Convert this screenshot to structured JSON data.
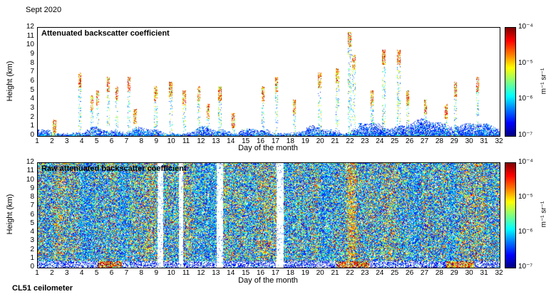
{
  "header": {
    "month_label": "Sept 2020"
  },
  "footer": {
    "instrument_label": "CL51 ceilometer"
  },
  "colors": {
    "background": "#ffffff",
    "axis": "#000000",
    "colormap": "jet",
    "jet_low": "#00007f",
    "jet_high": "#7f0000"
  },
  "chart_data": [
    {
      "type": "heatmap",
      "title": "Attenuated backscatter coefficient",
      "xlabel": "Day of the month",
      "ylabel": "Height (km)",
      "xlim": [
        1,
        32
      ],
      "ylim": [
        0,
        12
      ],
      "x_ticks": [
        1,
        2,
        3,
        4,
        5,
        6,
        7,
        8,
        9,
        10,
        11,
        12,
        13,
        14,
        15,
        16,
        17,
        18,
        19,
        20,
        21,
        22,
        23,
        24,
        25,
        26,
        27,
        28,
        29,
        30,
        31,
        32
      ],
      "y_ticks": [
        0,
        1,
        2,
        3,
        4,
        5,
        6,
        7,
        8,
        9,
        10,
        11,
        12
      ],
      "grid": false,
      "background": "white",
      "colorbar": {
        "label": "m⁻¹ sr⁻¹",
        "tick_labels": [
          "10⁻⁴",
          "10⁻⁵",
          "10⁻⁶",
          "10⁻⁷"
        ],
        "min": 1e-07,
        "max": 0.0001,
        "position": "right"
      },
      "features": {
        "description": "Mostly clear sky; speckled blue aerosol/boundary layer below ~1-2 km all month (deeper after day 23); intermittent cloud and precipitation streaks reaching 2-11.5 km",
        "boundary_layer_km": [
          0.3,
          2.5
        ],
        "events": [
          {
            "day": 2.1,
            "top": 1.8
          },
          {
            "day": 3.8,
            "top": 7.0
          },
          {
            "day": 4.6,
            "top": 4.5
          },
          {
            "day": 5.0,
            "top": 5.0
          },
          {
            "day": 5.7,
            "top": 6.5
          },
          {
            "day": 6.3,
            "top": 5.5
          },
          {
            "day": 7.1,
            "top": 6.5
          },
          {
            "day": 7.5,
            "top": 3.0
          },
          {
            "day": 8.9,
            "top": 5.5
          },
          {
            "day": 9.9,
            "top": 6.0
          },
          {
            "day": 10.8,
            "top": 5.0
          },
          {
            "day": 11.8,
            "top": 5.5
          },
          {
            "day": 12.4,
            "top": 3.5
          },
          {
            "day": 13.2,
            "top": 5.5
          },
          {
            "day": 14.1,
            "top": 2.5
          },
          {
            "day": 16.1,
            "top": 5.5
          },
          {
            "day": 17.0,
            "top": 6.5
          },
          {
            "day": 18.2,
            "top": 4.0
          },
          {
            "day": 19.9,
            "top": 7.0
          },
          {
            "day": 21.1,
            "top": 7.5
          },
          {
            "day": 21.9,
            "top": 11.5
          },
          {
            "day": 22.2,
            "top": 9.0
          },
          {
            "day": 23.4,
            "top": 5.0
          },
          {
            "day": 24.2,
            "top": 9.5
          },
          {
            "day": 25.2,
            "top": 9.5
          },
          {
            "day": 25.8,
            "top": 5.0
          },
          {
            "day": 27.0,
            "top": 4.0
          },
          {
            "day": 28.4,
            "top": 3.5
          },
          {
            "day": 29.0,
            "top": 6.0
          },
          {
            "day": 30.5,
            "top": 6.5
          }
        ]
      }
    },
    {
      "type": "heatmap",
      "title": "Raw attenuated backscatter coefficient",
      "xlabel": "Day of the month",
      "ylabel": "Height (km)",
      "xlim": [
        1,
        32
      ],
      "ylim": [
        0,
        12
      ],
      "x_ticks": [
        1,
        2,
        3,
        4,
        5,
        6,
        7,
        8,
        9,
        10,
        11,
        12,
        13,
        14,
        15,
        16,
        17,
        18,
        19,
        20,
        21,
        22,
        23,
        24,
        25,
        26,
        27,
        28,
        29,
        30,
        31,
        32
      ],
      "y_ticks": [
        0,
        1,
        2,
        3,
        4,
        5,
        6,
        7,
        8,
        9,
        10,
        11,
        12
      ],
      "grid": false,
      "background": "noise",
      "colorbar": {
        "label": "m⁻¹ sr⁻¹",
        "tick_labels": [
          "10⁻⁴",
          "10⁻⁵",
          "10⁻⁶",
          "10⁻⁷"
        ],
        "min": 1e-07,
        "max": 0.0001,
        "position": "right"
      },
      "features": {
        "description": "Dense multicolored speckle noise over all heights; pale/white band below ~0.8 km; white vertical data gaps near days 9.2, 10.6, 13.2 and 17.2; bright yellow columns near day 22; green/red low-level patches near days 5-6, 21-23 and 28-30",
        "gaps": [
          [
            9.0,
            9.4
          ],
          [
            10.45,
            10.75
          ],
          [
            13.0,
            13.4
          ],
          [
            17.0,
            17.5
          ]
        ],
        "hot_columns": [
          21.9,
          22.15
        ],
        "bottom_patches": [
          [
            5.0,
            6.6
          ],
          [
            21.0,
            23.2
          ],
          [
            28.4,
            30.3
          ]
        ]
      }
    }
  ]
}
